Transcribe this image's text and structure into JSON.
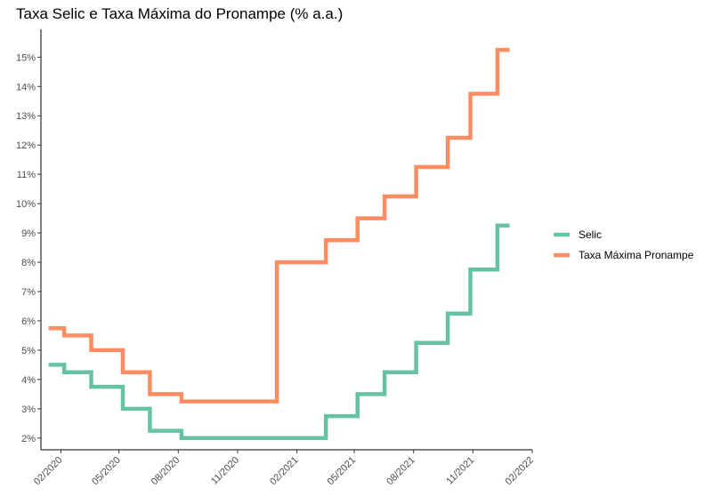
{
  "chart_data": {
    "type": "line",
    "title": "Taxa Selic e Taxa Máxima do Pronampe (% a.a.)",
    "xlabel": "",
    "ylabel": "",
    "x_ticks": [
      "02/2020",
      "05/2020",
      "08/2020",
      "11/2020",
      "02/2021",
      "05/2021",
      "08/2021",
      "11/2021",
      "02/2022"
    ],
    "x_range": [
      "2020-01-01",
      "2022-02-01"
    ],
    "y_ticks": [
      "2%",
      "3%",
      "4%",
      "5%",
      "6%",
      "7%",
      "8%",
      "9%",
      "10%",
      "11%",
      "12%",
      "13%",
      "14%",
      "15%"
    ],
    "ylim": [
      1.6,
      15.95
    ],
    "step": true,
    "grid": false,
    "legend_position": "right",
    "series": [
      {
        "name": "Selic",
        "color": "#66c2a5",
        "points": [
          [
            "2020-01-13",
            4.5
          ],
          [
            "2020-02-06",
            4.25
          ],
          [
            "2020-03-19",
            3.75
          ],
          [
            "2020-05-07",
            3.0
          ],
          [
            "2020-06-18",
            2.25
          ],
          [
            "2020-08-06",
            2.0
          ],
          [
            "2021-03-18",
            2.75
          ],
          [
            "2021-05-06",
            3.5
          ],
          [
            "2021-06-17",
            4.25
          ],
          [
            "2021-08-05",
            5.25
          ],
          [
            "2021-09-23",
            6.25
          ],
          [
            "2021-10-28",
            7.75
          ],
          [
            "2021-12-09",
            9.25
          ],
          [
            "2021-12-28",
            9.25
          ]
        ]
      },
      {
        "name": "Taxa Máxima Pronampe",
        "color": "#fc8d62",
        "points": [
          [
            "2020-01-13",
            5.75
          ],
          [
            "2020-02-06",
            5.5
          ],
          [
            "2020-03-19",
            5.0
          ],
          [
            "2020-05-07",
            4.25
          ],
          [
            "2020-06-18",
            3.5
          ],
          [
            "2020-08-06",
            3.25
          ],
          [
            "2021-01-01",
            8.0
          ],
          [
            "2021-03-18",
            8.75
          ],
          [
            "2021-05-06",
            9.5
          ],
          [
            "2021-06-17",
            10.25
          ],
          [
            "2021-08-05",
            11.25
          ],
          [
            "2021-09-23",
            12.25
          ],
          [
            "2021-10-28",
            13.75
          ],
          [
            "2021-12-09",
            15.25
          ],
          [
            "2021-12-28",
            15.25
          ]
        ]
      }
    ]
  }
}
